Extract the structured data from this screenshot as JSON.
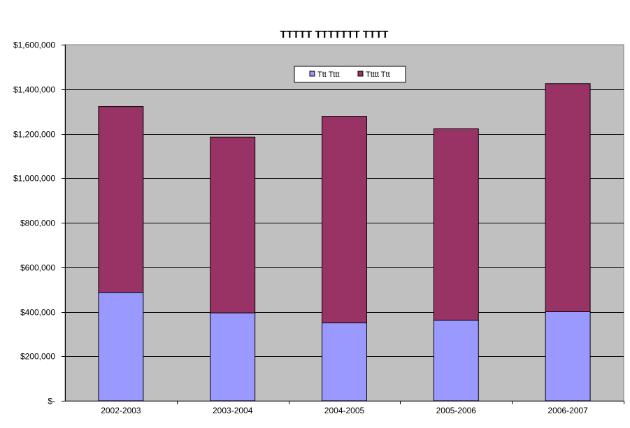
{
  "chart_data": {
    "type": "bar",
    "stacked": true,
    "title": "TTTTT TTTTTTT TTTT",
    "xlabel": "",
    "ylabel": "",
    "categories": [
      "2002-2003",
      "2003-2004",
      "2004-2005",
      "2005-2006",
      "2006-2007"
    ],
    "series": [
      {
        "name": "Ttt Tttt",
        "color": "#9999ff",
        "values": [
          487000,
          395000,
          350000,
          362000,
          400000
        ]
      },
      {
        "name": "Ttttt Ttt",
        "color": "#993366",
        "values": [
          835000,
          790000,
          928000,
          860000,
          1025000
        ]
      }
    ],
    "ylim": [
      0,
      1600000
    ],
    "yticks": [
      0,
      200000,
      400000,
      600000,
      800000,
      1000000,
      1200000,
      1400000,
      1600000
    ],
    "ytick_labels": [
      "$-",
      "$200,000",
      "$400,000",
      "$600,000",
      "$800,000",
      "$1,000,000",
      "$1,200,000",
      "$1,400,000",
      "$1,600,000"
    ],
    "grid": true,
    "plot_background": "#c0c0c0",
    "legend_position": "top-center"
  }
}
